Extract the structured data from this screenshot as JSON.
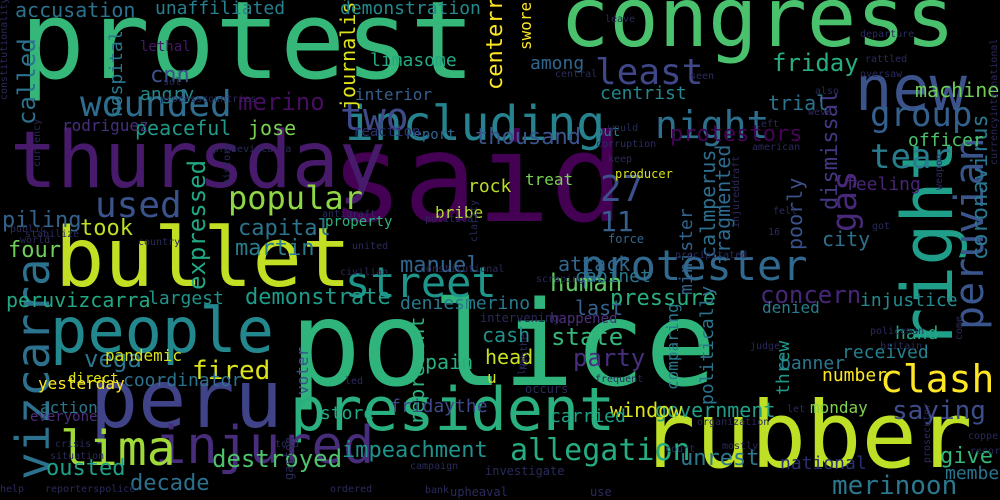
{
  "words": [
    {
      "text": "said",
      "color": "#440154"
    },
    {
      "text": "police",
      "color": "#2fb47c"
    },
    {
      "text": "protest",
      "color": "#35b779"
    },
    {
      "text": "congress",
      "color": "#4ac16d"
    },
    {
      "text": "thursday",
      "color": "#481a6c"
    },
    {
      "text": "bullet",
      "color": "#c2df23"
    },
    {
      "text": "rubber",
      "color": "#bddf26"
    },
    {
      "text": "president",
      "color": "#2ab07f"
    },
    {
      "text": "peru",
      "color": "#404387"
    },
    {
      "text": "people",
      "color": "#23888e"
    },
    {
      "text": "new",
      "color": "#3b528b"
    },
    {
      "text": "right",
      "color": "#1f9e89"
    },
    {
      "text": "protester",
      "color": "#31688e"
    },
    {
      "text": "including",
      "color": "#26828e"
    },
    {
      "text": "injured",
      "color": "#472d7b"
    },
    {
      "text": "lima",
      "color": "#a0da39"
    },
    {
      "text": "street",
      "color": "#1f968b"
    },
    {
      "text": "vizcarra",
      "color": "#2c718e"
    },
    {
      "text": "wounded",
      "color": "#2e6d8e"
    },
    {
      "text": "two",
      "color": "#3e4a89"
    },
    {
      "text": "night",
      "color": "#2d708e"
    },
    {
      "text": "group",
      "color": "#34608d"
    },
    {
      "text": "tear",
      "color": "#297b8e"
    },
    {
      "text": "peruvian",
      "color": "#39558c"
    },
    {
      "text": "least",
      "color": "#3f4788"
    },
    {
      "text": "used",
      "color": "#3a538b"
    },
    {
      "text": "popular",
      "color": "#8fd744"
    },
    {
      "text": "clash",
      "color": "#fde725"
    },
    {
      "text": "gas",
      "color": "#482979"
    },
    {
      "text": "27",
      "color": "#3c508b"
    },
    {
      "text": "11",
      "color": "#355f8d"
    },
    {
      "text": "called",
      "color": "#2c728e"
    },
    {
      "text": "expressed",
      "color": "#22a785"
    },
    {
      "text": "fired",
      "color": "#dde318"
    },
    {
      "text": "impeachment",
      "color": "#20938c"
    },
    {
      "text": "allegation",
      "color": "#25ac82"
    },
    {
      "text": "saying",
      "color": "#3d4d8a"
    },
    {
      "text": "attack",
      "color": "#31668e"
    },
    {
      "text": "friday",
      "color": "#27ad81"
    },
    {
      "text": "machine",
      "color": "#6ece58"
    },
    {
      "text": "concern",
      "color": "#482677"
    },
    {
      "text": "coronavirus",
      "color": "#2a768e"
    },
    {
      "text": "dismissal",
      "color": "#453781"
    },
    {
      "text": "merino",
      "color": "#470d60"
    },
    {
      "text": "party",
      "color": "#472f7d"
    },
    {
      "text": "state",
      "color": "#35b779"
    },
    {
      "text": "human",
      "color": "#5ec962"
    },
    {
      "text": "pressure",
      "color": "#29af7f"
    },
    {
      "text": "demonstrate",
      "color": "#1e9b8a"
    },
    {
      "text": "destroyed",
      "color": "#4ec36b"
    },
    {
      "text": "government",
      "color": "#1f9f88"
    },
    {
      "text": "window",
      "color": "#dde318"
    },
    {
      "text": "unrest",
      "color": "#2a788e"
    },
    {
      "text": "decade",
      "color": "#2d708e"
    },
    {
      "text": "give",
      "color": "#35b779"
    },
    {
      "text": "merinoon",
      "color": "#2a778e"
    },
    {
      "text": "ousted",
      "color": "#1fa188"
    },
    {
      "text": "vega",
      "color": "#2a768e"
    },
    {
      "text": "thousand",
      "color": "#3a548c"
    },
    {
      "text": "peaceful",
      "color": "#1f9a8a"
    },
    {
      "text": "rodriguez",
      "color": "#46307e"
    },
    {
      "text": "jose",
      "color": "#7ad151"
    },
    {
      "text": "trial",
      "color": "#2c738e"
    },
    {
      "text": "interior",
      "color": "#355f8d"
    },
    {
      "text": "protestors",
      "color": "#450457"
    },
    {
      "text": "centrist",
      "color": "#24878e"
    },
    {
      "text": "among",
      "color": "#31678e"
    },
    {
      "text": "limasome",
      "color": "#23a983"
    },
    {
      "text": "journalist",
      "color": "#dde318"
    },
    {
      "text": "demonstration",
      "color": "#238a8d"
    },
    {
      "text": "swore",
      "color": "#fde725"
    },
    {
      "text": "centerright",
      "color": "#fde725"
    },
    {
      "text": "accusation",
      "color": "#2c728e"
    },
    {
      "text": "unaffiliated",
      "color": "#27808e"
    },
    {
      "text": "cnn",
      "color": "#3b528b"
    },
    {
      "text": "angry",
      "color": "#238a8d"
    },
    {
      "text": "hospital",
      "color": "#2a778e"
    },
    {
      "text": "lethal",
      "color": "#481769"
    },
    {
      "text": "piling",
      "color": "#33628d"
    },
    {
      "text": "took",
      "color": "#bddf26"
    },
    {
      "text": "four",
      "color": "#70cf57"
    },
    {
      "text": "capital",
      "color": "#2b748e"
    },
    {
      "text": "martin",
      "color": "#287c8e"
    },
    {
      "text": "manuel",
      "color": "#32658e"
    },
    {
      "text": "cabinet",
      "color": "#2a778e"
    },
    {
      "text": "rock",
      "color": "#bade28"
    },
    {
      "text": "treat",
      "color": "#7ad151"
    },
    {
      "text": "bribe",
      "color": "#b5de2b"
    },
    {
      "text": "calmperus",
      "color": "#2e6e8e"
    },
    {
      "text": "fragmented",
      "color": "#2f6b8e"
    },
    {
      "text": "poorly",
      "color": "#3b518b"
    },
    {
      "text": "officer",
      "color": "#4cc26c"
    },
    {
      "text": "feeling",
      "color": "#482475"
    },
    {
      "text": "city",
      "color": "#2d718e"
    },
    {
      "text": "largest",
      "color": "#20938c"
    },
    {
      "text": "peruvizcarra",
      "color": "#22a884"
    },
    {
      "text": "deniesmerino",
      "color": "#297a8e"
    },
    {
      "text": "last",
      "color": "#34618d"
    },
    {
      "text": "minister",
      "color": "#33638d"
    },
    {
      "text": "denied",
      "color": "#287d8e"
    },
    {
      "text": "injustice",
      "color": "#238a8d"
    },
    {
      "text": "received",
      "color": "#27808e"
    },
    {
      "text": "banner",
      "color": "#2a788e"
    },
    {
      "text": "hand",
      "color": "#22a785"
    },
    {
      "text": "number",
      "color": "#fde725"
    },
    {
      "text": "threw",
      "color": "#1f988b"
    },
    {
      "text": "politically",
      "color": "#2c738e"
    },
    {
      "text": "comparing",
      "color": "#287c8e"
    },
    {
      "text": "cash",
      "color": "#21918c"
    },
    {
      "text": "pain",
      "color": "#2ab07f"
    },
    {
      "text": "head",
      "color": "#cae11f"
    },
    {
      "text": "represent",
      "color": "#2db27d"
    },
    {
      "text": "carried",
      "color": "#1fa188"
    },
    {
      "text": "store",
      "color": "#22a785"
    },
    {
      "text": "fridaythe",
      "color": "#3e4989"
    },
    {
      "text": "coordinator",
      "color": "#2c728e"
    },
    {
      "text": "pandemic",
      "color": "#d8e219"
    },
    {
      "text": "yesterday",
      "color": "#fde725"
    },
    {
      "text": "direct",
      "color": "#dde318"
    },
    {
      "text": "action",
      "color": "#2a788e"
    },
    {
      "text": "everyone",
      "color": "#4e2d7b"
    },
    {
      "text": "voter",
      "color": "#3b518b"
    },
    {
      "text": "monday",
      "color": "#7fd34e"
    },
    {
      "text": "national",
      "color": "#2a2f72"
    },
    {
      "text": "member",
      "color": "#2b748e"
    },
    {
      "text": "property",
      "color": "#2db27d"
    },
    {
      "text": "u",
      "color": "#d5e21a"
    },
    {
      "text": "happened",
      "color": "#4d2e7b"
    },
    {
      "text": "intervening",
      "color": "#2a2a5c"
    },
    {
      "text": "put",
      "color": "#27808e"
    },
    {
      "text": "report",
      "color": "#31668e"
    },
    {
      "text": "reaction",
      "color": "#2b2e6e"
    },
    {
      "text": "corruption",
      "color": "#2c2c62"
    },
    {
      "text": "keep",
      "color": "#2a2a5c"
    },
    {
      "text": "producer",
      "color": "#d8e219"
    },
    {
      "text": "force",
      "color": "#31668e"
    },
    {
      "text": "scraping",
      "color": "#2a2a5c"
    },
    {
      "text": "clarity",
      "color": "#2a2a5c"
    },
    {
      "text": "precipitated",
      "color": "#2a2a5c"
    },
    {
      "text": "injureddraft",
      "color": "#2a2a5c"
    },
    {
      "text": "antigraft",
      "color": "#2a2a5c"
    },
    {
      "text": "political",
      "color": "#2a2a5c"
    },
    {
      "text": "constitutional",
      "color": "#2a2a5c"
    },
    {
      "text": "civilian",
      "color": "#2a2a5c"
    },
    {
      "text": "united",
      "color": "#2a2a5c"
    },
    {
      "text": "campaign",
      "color": "#2a2a5c"
    },
    {
      "text": "hinthe",
      "color": "#2a2a5c"
    },
    {
      "text": "occurs",
      "color": "#2a2a5c"
    },
    {
      "text": "investigate",
      "color": "#2a2a5c"
    },
    {
      "text": "upheaval",
      "color": "#2a2a5c"
    },
    {
      "text": "bank",
      "color": "#2a2a5c"
    },
    {
      "text": "ordered",
      "color": "#2a2a5c"
    },
    {
      "text": "use",
      "color": "#2a2a5c"
    },
    {
      "text": "court",
      "color": "#2a2a5c"
    },
    {
      "text": "frequent",
      "color": "#2a2a5c"
    },
    {
      "text": "organization",
      "color": "#2a2a5c"
    },
    {
      "text": "mostly",
      "color": "#2a2a5c"
    },
    {
      "text": "judge",
      "color": "#2a2a5c"
    },
    {
      "text": "let",
      "color": "#2a2a5c"
    },
    {
      "text": "low",
      "color": "#2a2a5c"
    },
    {
      "text": "led",
      "color": "#2a2a5c"
    },
    {
      "text": "told",
      "color": "#2a2a5c"
    },
    {
      "text": "gastón",
      "color": "#2a2a5c"
    },
    {
      "text": "help",
      "color": "#2a2a5c"
    },
    {
      "text": "reporterspolice",
      "color": "#2a2a5c"
    },
    {
      "text": "crisis",
      "color": "#2a2a5c"
    },
    {
      "text": "situation",
      "color": "#2a2a5c"
    },
    {
      "text": "sol",
      "color": "#2a2a5c"
    },
    {
      "text": "probevizcarra",
      "color": "#2a2a5c"
    },
    {
      "text": "history",
      "color": "#2a2a5c"
    },
    {
      "text": "stabilize",
      "color": "#2a2a5c"
    },
    {
      "text": "currency",
      "color": "#2a2a5c"
    },
    {
      "text": "public",
      "color": "#2a2a5c"
    },
    {
      "text": "world",
      "color": "#2a2a5c"
    },
    {
      "text": "country",
      "color": "#2a2a5c"
    },
    {
      "text": "processcountries",
      "color": "#2a2a5c"
    },
    {
      "text": "constitutionality",
      "color": "#2a2a5c"
    },
    {
      "text": "leave",
      "color": "#2a2a5c"
    },
    {
      "text": "seen",
      "color": "#2a2a5c"
    },
    {
      "text": "central",
      "color": "#2a2a5c"
    },
    {
      "text": "also",
      "color": "#2a2a5c"
    },
    {
      "text": "departure",
      "color": "#2a2a5c"
    },
    {
      "text": "rattled",
      "color": "#2a2a5c"
    },
    {
      "text": "oversaw",
      "color": "#2a2a5c"
    },
    {
      "text": "left",
      "color": "#2a2a5c"
    },
    {
      "text": "american",
      "color": "#2a2a5c"
    },
    {
      "text": "weve",
      "color": "#2a2a5c"
    },
    {
      "text": "would",
      "color": "#2a2a5c"
    },
    {
      "text": "weapon",
      "color": "#2a2a5c"
    },
    {
      "text": "fell",
      "color": "#2a2a5c"
    },
    {
      "text": "got",
      "color": "#2a2a5c"
    },
    {
      "text": "16",
      "color": "#2a2a5c"
    },
    {
      "text": "policeman",
      "color": "#2a2a5c"
    },
    {
      "text": "britain",
      "color": "#2a2a5c"
    },
    {
      "text": "come",
      "color": "#2a2a5c"
    },
    {
      "text": "copper",
      "color": "#2a2a5c"
    },
    {
      "text": "record",
      "color": "#2a2a5c"
    },
    {
      "text": "prosecutor",
      "color": "#2a2a5c"
    },
    {
      "text": "currencyinternational",
      "color": "#2a2a5c"
    }
  ]
}
